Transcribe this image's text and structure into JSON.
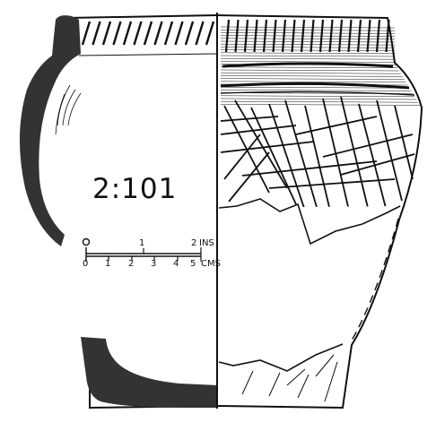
{
  "figure": {
    "label": "2:101",
    "ink_color": "#111111",
    "section_fill": "#333333",
    "paper_color": "#ffffff"
  },
  "scale_bar": {
    "inch_ticks": [
      "0",
      "1",
      "2"
    ],
    "inch_unit": "INS",
    "cm_ticks": [
      "0",
      "1",
      "2",
      "3",
      "4",
      "5"
    ],
    "cm_unit": "CMS"
  }
}
